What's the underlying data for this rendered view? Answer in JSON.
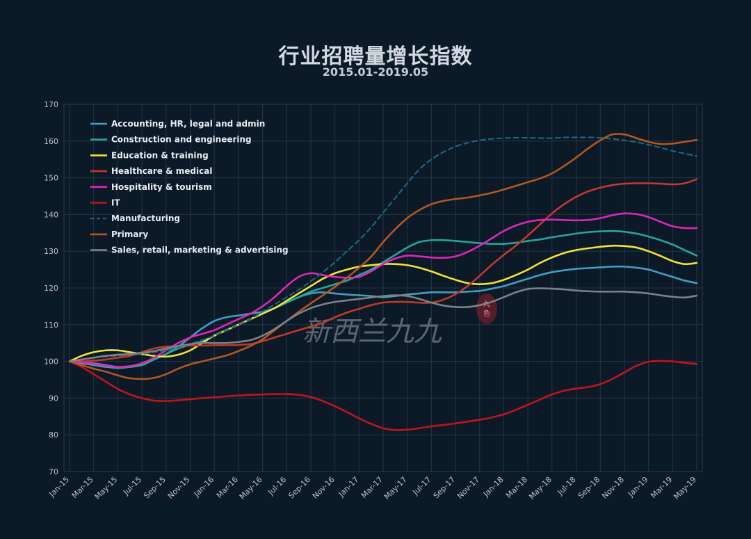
{
  "chart_data": {
    "type": "line",
    "title": "行业招聘量增长指数",
    "subtitle": "2015.01-2019.05",
    "xlabel": "",
    "ylabel": "",
    "ylim": [
      70,
      170
    ],
    "yticks": [
      70,
      80,
      90,
      100,
      110,
      120,
      130,
      140,
      150,
      160,
      170
    ],
    "grid": true,
    "legend_position": "top-left",
    "x": [
      "Jan-15",
      "Feb-15",
      "Mar-15",
      "Apr-15",
      "May-15",
      "Jun-15",
      "Jul-15",
      "Aug-15",
      "Sep-15",
      "Oct-15",
      "Nov-15",
      "Dec-15",
      "Jan-16",
      "Feb-16",
      "Mar-16",
      "Apr-16",
      "May-16",
      "Jun-16",
      "Jul-16",
      "Aug-16",
      "Sep-16",
      "Oct-16",
      "Nov-16",
      "Dec-16",
      "Jan-17",
      "Feb-17",
      "Mar-17",
      "Apr-17",
      "May-17",
      "Jun-17",
      "Jul-17",
      "Aug-17",
      "Sep-17",
      "Oct-17",
      "Nov-17",
      "Dec-17",
      "Jan-18",
      "Feb-18",
      "Mar-18",
      "Apr-18",
      "May-18",
      "Jun-18",
      "Jul-18",
      "Aug-18",
      "Sep-18",
      "Oct-18",
      "Nov-18",
      "Dec-18",
      "Jan-19",
      "Feb-19",
      "Mar-19",
      "Apr-19",
      "May-19"
    ],
    "x_tick_labels": [
      "Jan-15",
      "Mar-15",
      "May-15",
      "Jul-15",
      "Sep-15",
      "Nov-15",
      "Jan-16",
      "Mar-16",
      "May-16",
      "Jul-16",
      "Sep-16",
      "Nov-16",
      "Jan-17",
      "Mar-17",
      "May-17",
      "Jul-17",
      "Sep-17",
      "Nov-17",
      "Jan-18",
      "Mar-18",
      "May-18",
      "Jul-18",
      "Sep-18",
      "Nov-18",
      "Jan-19",
      "Mar-19",
      "May-19"
    ],
    "series": [
      {
        "name": "Accounting, HR, legal and admin",
        "color": "#3fa0c4",
        "dashed": false,
        "values": [
          100,
          99.5,
          99,
          98.5,
          98.2,
          98.5,
          99.2,
          100.5,
          102,
          104,
          106.5,
          109,
          111,
          112,
          112.5,
          113,
          113.5,
          114.5,
          116,
          117.5,
          118.5,
          118.8,
          118.5,
          118.2,
          118,
          117.8,
          117.5,
          117.8,
          118.2,
          118.5,
          118.8,
          118.8,
          118.8,
          119,
          119.2,
          119.8,
          120.5,
          121.5,
          122.5,
          123.5,
          124.3,
          124.8,
          125.2,
          125.4,
          125.6,
          125.8,
          125.8,
          125.5,
          125,
          124,
          123,
          122,
          121.3
        ]
      },
      {
        "name": "Construction and engineering",
        "color": "#26a69a",
        "dashed": false,
        "values": [
          100,
          99.8,
          99.5,
          99,
          98.5,
          98.5,
          99,
          100.5,
          102,
          103.5,
          104.5,
          105.5,
          107,
          108.5,
          110,
          111.5,
          113,
          114.5,
          116,
          117.5,
          119,
          120,
          121,
          122,
          123.5,
          125,
          127,
          129,
          131,
          132.5,
          133,
          133,
          132.8,
          132.5,
          132.2,
          132,
          132,
          132.3,
          132.8,
          133.2,
          133.8,
          134.3,
          134.8,
          135.2,
          135.4,
          135.5,
          135.3,
          134.8,
          134,
          133,
          131.8,
          130.3,
          128.8
        ]
      },
      {
        "name": "Education & training",
        "color": "#f4e33a",
        "dashed": false,
        "values": [
          100,
          101.5,
          102.5,
          103,
          103,
          102.5,
          102,
          101.5,
          101.3,
          101.8,
          103,
          105,
          107,
          108.5,
          110,
          111.5,
          113,
          114.5,
          116.5,
          118.5,
          120.5,
          122.5,
          124,
          125,
          125.8,
          126.2,
          126.5,
          126.5,
          126.2,
          125.5,
          124.5,
          123.3,
          122.2,
          121.3,
          121,
          121.3,
          122.2,
          123.5,
          125,
          126.8,
          128.3,
          129.5,
          130.3,
          130.8,
          131.2,
          131.5,
          131.4,
          131,
          130,
          128.7,
          127.3,
          126.5,
          126.8
        ]
      },
      {
        "name": "Healthcare & medical",
        "color": "#c0392b",
        "dashed": false,
        "values": [
          100,
          100,
          100.2,
          100.5,
          101,
          101.5,
          102.5,
          103.5,
          104,
          104.2,
          104.3,
          104.3,
          104.4,
          104.4,
          104.5,
          104.7,
          105.5,
          106.5,
          107.5,
          108.5,
          109.5,
          110.5,
          112,
          113.3,
          114.3,
          115.3,
          116,
          116.2,
          116.2,
          116,
          116,
          116.8,
          118.3,
          120.5,
          123.3,
          126.3,
          129,
          131.5,
          134.3,
          137.3,
          140.3,
          142.8,
          144.8,
          146.3,
          147.3,
          148,
          148.4,
          148.5,
          148.5,
          148.4,
          148.2,
          148.5,
          149.6
        ]
      },
      {
        "name": "Hospitality & tourism",
        "color": "#e026b8",
        "dashed": false,
        "values": [
          100,
          99.8,
          99.3,
          98.8,
          98.5,
          98.7,
          99.5,
          101,
          103,
          105,
          106.5,
          107.5,
          108.5,
          110,
          111.5,
          113,
          115,
          117.5,
          120.5,
          123,
          124,
          123.5,
          123,
          122.8,
          123,
          124.5,
          126.5,
          128,
          128.8,
          128.6,
          128.3,
          128.2,
          128.6,
          129.8,
          131.5,
          133.5,
          135.5,
          137,
          138,
          138.5,
          138.6,
          138.5,
          138.4,
          138.5,
          139,
          139.8,
          140.3,
          140.1,
          139.3,
          138,
          136.8,
          136.3,
          136.3
        ]
      },
      {
        "name": "IT",
        "color": "#c1141c",
        "dashed": false,
        "values": [
          100,
          98.5,
          96.5,
          94.5,
          92.5,
          91,
          90,
          89.3,
          89.2,
          89.4,
          89.7,
          90,
          90.2,
          90.5,
          90.7,
          90.9,
          91,
          91.1,
          91.1,
          90.9,
          90.3,
          89.2,
          87.8,
          86.2,
          84.5,
          83,
          81.8,
          81.3,
          81.4,
          81.8,
          82.3,
          82.7,
          83.1,
          83.6,
          84.1,
          84.7,
          85.6,
          86.8,
          88.2,
          89.6,
          91,
          92,
          92.6,
          93,
          93.8,
          95.2,
          97,
          98.8,
          99.9,
          100.1,
          100,
          99.6,
          99.3
        ]
      },
      {
        "name": "Manufacturing",
        "color": "#1f6b86",
        "dashed": true,
        "values": [
          100,
          100.5,
          101,
          101.3,
          101.5,
          101.8,
          102,
          102.5,
          103,
          103.8,
          104.8,
          105.8,
          107,
          108.5,
          110,
          111.5,
          113.5,
          115.5,
          117.5,
          119.5,
          121.8,
          124.3,
          127,
          130,
          133,
          136.5,
          140.5,
          144.5,
          148.5,
          152.3,
          155,
          157,
          158.5,
          159.5,
          160.2,
          160.6,
          160.8,
          160.9,
          160.9,
          160.8,
          160.8,
          161,
          161,
          161,
          160.9,
          160.6,
          160.2,
          159.7,
          159,
          158.2,
          157.3,
          156.6,
          155.9
        ]
      },
      {
        "name": "Primary",
        "color": "#b5561e",
        "dashed": false,
        "values": [
          100,
          99,
          98,
          97.2,
          96.2,
          95.4,
          95.2,
          95.5,
          96.5,
          98,
          99.2,
          100,
          100.8,
          101.6,
          102.8,
          104.2,
          106,
          108.5,
          111,
          113.5,
          115.8,
          118,
          120.3,
          122.8,
          125.5,
          128.5,
          132.5,
          136,
          139,
          141.2,
          142.8,
          143.7,
          144.2,
          144.6,
          145.2,
          145.9,
          146.8,
          147.8,
          148.8,
          149.8,
          151.2,
          153.2,
          155.5,
          158,
          160.2,
          161.8,
          161.8,
          160.8,
          159.8,
          159.2,
          159.3,
          159.8,
          160.3
        ]
      },
      {
        "name": "Sales, retail, marketing & advertising",
        "color": "#7c8286",
        "dashed": false,
        "values": [
          100,
          100.5,
          101,
          101.5,
          101.8,
          102,
          102.3,
          102.8,
          103.5,
          104.2,
          104.7,
          105,
          105,
          105,
          105.3,
          105.8,
          107,
          108.8,
          111,
          113,
          114.5,
          115.5,
          116.2,
          116.6,
          117,
          117.4,
          117.8,
          118,
          117.8,
          117,
          116,
          115.2,
          114.8,
          114.8,
          115.3,
          116.2,
          117.5,
          118.8,
          119.7,
          119.9,
          119.8,
          119.6,
          119.3,
          119.1,
          119,
          119,
          119,
          118.8,
          118.5,
          118,
          117.6,
          117.4,
          117.9
        ]
      }
    ]
  },
  "watermark": "新西兰九九",
  "watermark_seal": "九色"
}
